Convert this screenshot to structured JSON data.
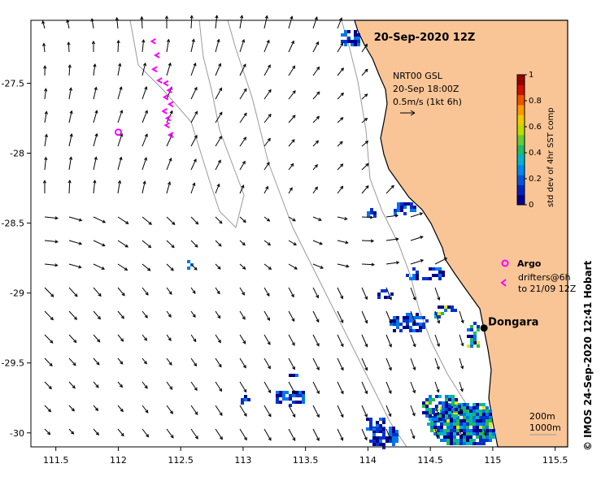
{
  "map": {
    "title": "20-Sep-2020 12Z",
    "product_label": "NRT00 GSL",
    "product_time": "20-Sep 18:00Z",
    "scale_arrow_label": "0.5m/s (1kt 6h)",
    "lon_ticks": [
      "111.5",
      "112",
      "112.5",
      "113",
      "113.5",
      "114",
      "114.5",
      "115",
      "115.5"
    ],
    "lat_ticks": [
      "-27.5",
      "-28",
      "-28.5",
      "-29",
      "-29.5",
      "-30"
    ],
    "lon_range": [
      111.3,
      115.6
    ],
    "lat_range": [
      -27.05,
      -30.1
    ],
    "town": {
      "name": "Dongara",
      "lon": 114.93,
      "lat": -29.25
    },
    "argo_float": {
      "lon": 112.0,
      "lat": -27.85
    },
    "drifter_track": [
      {
        "lon": 112.28,
        "lat": -27.2
      },
      {
        "lon": 112.31,
        "lat": -27.3
      },
      {
        "lon": 112.29,
        "lat": -27.4
      },
      {
        "lon": 112.33,
        "lat": -27.48
      },
      {
        "lon": 112.38,
        "lat": -27.5
      },
      {
        "lon": 112.41,
        "lat": -27.55
      },
      {
        "lon": 112.38,
        "lat": -27.6
      },
      {
        "lon": 112.42,
        "lat": -27.65
      },
      {
        "lon": 112.37,
        "lat": -27.7
      },
      {
        "lon": 112.4,
        "lat": -27.75
      },
      {
        "lon": 112.39,
        "lat": -27.8
      },
      {
        "lon": 112.42,
        "lat": -27.87
      }
    ],
    "isobath_labels": [
      "200m",
      "1000m"
    ],
    "legend": {
      "argo_label": "Argo",
      "drifters_line1": "drifters@6h",
      "drifters_line2": "to 21/09 12Z"
    },
    "credit": "© IMOS 24-Sep-2020 12:41 Hobart",
    "land_color": "#f9c596"
  },
  "colorbar": {
    "title": "std dev of 4hr SST comp",
    "ticks": [
      "0",
      "0.2",
      "0.4",
      "0.6",
      "0.8",
      "1"
    ],
    "range": [
      0,
      1
    ]
  }
}
